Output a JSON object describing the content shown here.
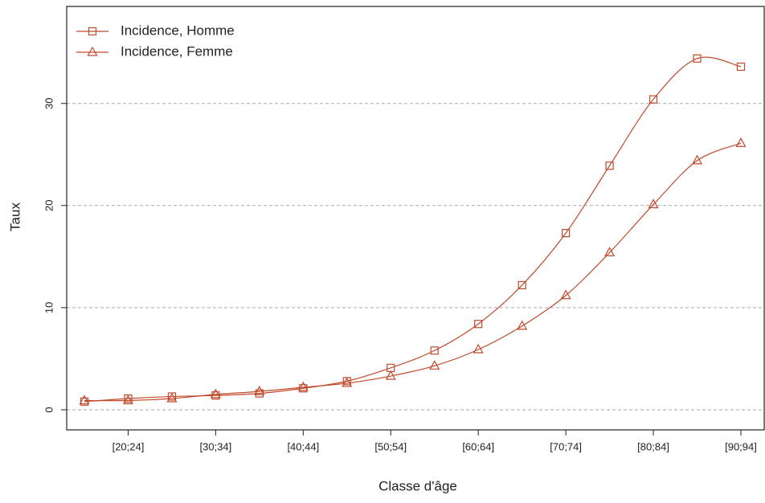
{
  "chart_data": {
    "type": "line",
    "x_label": "Classe d'âge",
    "y_label": "Taux",
    "categories": [
      null,
      "[20;24]",
      null,
      "[30;34]",
      null,
      "[40;44]",
      null,
      "[50;54]",
      null,
      "[60;64]",
      null,
      "[70;74]",
      null,
      "[80;84]",
      null,
      "[90;94]"
    ],
    "series": [
      {
        "name": "Incidence, Homme",
        "color": "#c0492a",
        "marker": "square",
        "values": [
          0.8,
          1.1,
          1.3,
          1.4,
          1.6,
          2.1,
          2.8,
          4.1,
          5.8,
          8.4,
          12.2,
          17.3,
          23.9,
          30.4,
          34.4,
          33.6
        ]
      },
      {
        "name": "Incidence, Femme",
        "color": "#c0492a",
        "marker": "triangle",
        "values": [
          0.9,
          0.9,
          1.1,
          1.5,
          1.8,
          2.2,
          2.6,
          3.3,
          4.3,
          5.9,
          8.2,
          11.2,
          15.4,
          20.1,
          24.4,
          26.1
        ]
      }
    ],
    "ylim": [
      -1.97,
      39.5
    ],
    "yticks": [
      0,
      10,
      20,
      30
    ],
    "grid": true,
    "legend": "top-left"
  }
}
